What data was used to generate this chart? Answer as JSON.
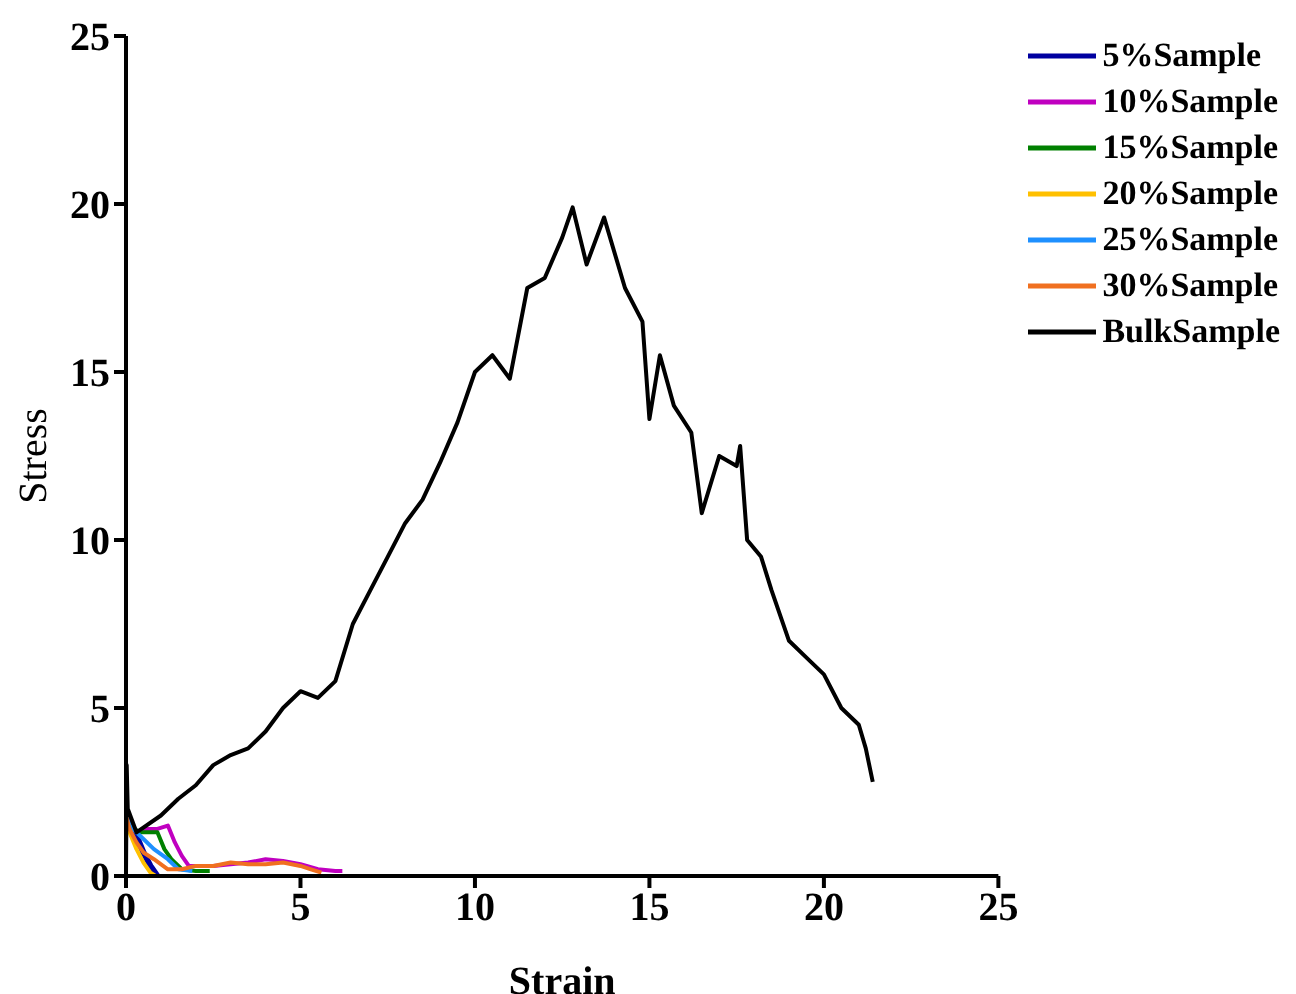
{
  "chart_data": {
    "type": "line",
    "xlabel": "Strain",
    "ylabel": "Stress",
    "xlim": [
      0,
      25
    ],
    "ylim": [
      0,
      25
    ],
    "xticks": [
      0,
      5,
      10,
      15,
      20,
      25
    ],
    "yticks": [
      0,
      5,
      10,
      15,
      20,
      25
    ],
    "grid": false,
    "legend": "top right",
    "marker": "none",
    "line_style": "solid",
    "series": [
      {
        "name": "5%Sample",
        "color": "#0000a0",
        "x": [
          0,
          0.1,
          0.3,
          0.5,
          0.7,
          0.9
        ],
        "values": [
          1.8,
          1.6,
          1.2,
          0.7,
          0.3,
          0
        ]
      },
      {
        "name": "10%Sample",
        "color": "#c000c0",
        "x": [
          0,
          0.1,
          0.3,
          0.6,
          0.9,
          1.2,
          1.4,
          1.6,
          1.8,
          2.5,
          3,
          3.5,
          4,
          4.5,
          5,
          5.5,
          6,
          6.2
        ],
        "values": [
          1.8,
          1.5,
          1.3,
          1.4,
          1.4,
          1.5,
          1.0,
          0.6,
          0.3,
          0.3,
          0.35,
          0.4,
          0.5,
          0.45,
          0.35,
          0.2,
          0.15,
          0.15
        ]
      },
      {
        "name": "15%Sample",
        "color": "#008000",
        "x": [
          0,
          0.1,
          0.4,
          0.7,
          0.9,
          1.1,
          1.3,
          1.6,
          2,
          2.4
        ],
        "values": [
          1.8,
          1.5,
          1.3,
          1.3,
          1.3,
          0.8,
          0.5,
          0.2,
          0.15,
          0.15
        ]
      },
      {
        "name": "20%Sample",
        "color": "#ffc000",
        "x": [
          0,
          0.1,
          0.3,
          0.5,
          0.7,
          0.85
        ],
        "values": [
          1.8,
          1.3,
          0.8,
          0.4,
          0.1,
          0
        ]
      },
      {
        "name": "25%Sample",
        "color": "#1e90ff",
        "x": [
          0,
          0.1,
          0.5,
          0.8,
          1.2,
          1.5,
          1.9
        ],
        "values": [
          1.8,
          1.5,
          1.1,
          0.8,
          0.5,
          0.2,
          0.15
        ]
      },
      {
        "name": "30%Sample",
        "color": "#f07020",
        "x": [
          0,
          0.1,
          0.3,
          0.5,
          0.8,
          1.2,
          1.6,
          2,
          2.5,
          3,
          3.5,
          4,
          4.5,
          5,
          5.3,
          5.6
        ],
        "values": [
          1.8,
          1.4,
          1.0,
          0.7,
          0.5,
          0.2,
          0.2,
          0.3,
          0.3,
          0.4,
          0.35,
          0.35,
          0.4,
          0.3,
          0.2,
          0.1
        ]
      },
      {
        "name": "BulkSample",
        "color": "#000000",
        "x": [
          0,
          0.02,
          0.05,
          0.3,
          1,
          1.5,
          2,
          2.5,
          3,
          3.5,
          4,
          4.5,
          5,
          5.5,
          6,
          6.5,
          7,
          7.5,
          8,
          8.5,
          9,
          9.5,
          10,
          10.5,
          11,
          11.5,
          12,
          12.5,
          12.8,
          13.2,
          13.7,
          14.3,
          14.8,
          15,
          15.3,
          15.7,
          16.2,
          16.5,
          17,
          17.5,
          17.6,
          17.8,
          18.2,
          18.5,
          19,
          19.5,
          20,
          20.5,
          21,
          21.2,
          21.4
        ],
        "values": [
          0,
          3.3,
          2.0,
          1.3,
          1.8,
          2.3,
          2.7,
          3.3,
          3.6,
          3.8,
          4.3,
          5.0,
          5.5,
          5.3,
          5.8,
          7.5,
          8.5,
          9.5,
          10.5,
          11.2,
          12.3,
          13.5,
          15.0,
          15.5,
          14.8,
          17.5,
          17.8,
          19.0,
          19.9,
          18.2,
          19.6,
          17.5,
          16.5,
          13.6,
          15.5,
          14.0,
          13.2,
          10.8,
          12.5,
          12.2,
          12.8,
          10.0,
          9.5,
          8.5,
          7.0,
          6.5,
          6.0,
          5.0,
          4.5,
          3.8,
          2.8
        ]
      }
    ]
  }
}
